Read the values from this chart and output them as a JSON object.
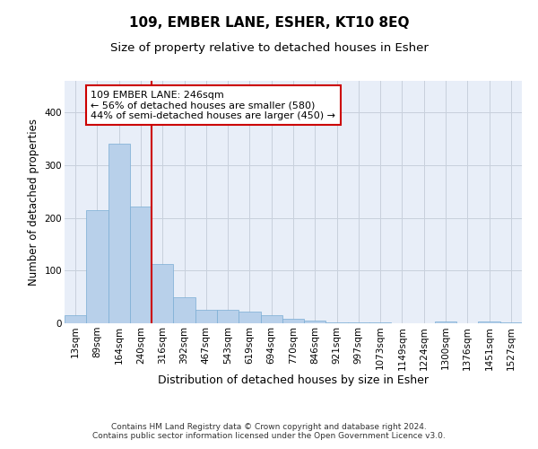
{
  "title": "109, EMBER LANE, ESHER, KT10 8EQ",
  "subtitle": "Size of property relative to detached houses in Esher",
  "xlabel": "Distribution of detached houses by size in Esher",
  "ylabel": "Number of detached properties",
  "categories": [
    "13sqm",
    "89sqm",
    "164sqm",
    "240sqm",
    "316sqm",
    "392sqm",
    "467sqm",
    "543sqm",
    "619sqm",
    "694sqm",
    "770sqm",
    "846sqm",
    "921sqm",
    "997sqm",
    "1073sqm",
    "1149sqm",
    "1224sqm",
    "1300sqm",
    "1376sqm",
    "1451sqm",
    "1527sqm"
  ],
  "values": [
    15,
    215,
    340,
    222,
    113,
    50,
    26,
    25,
    23,
    16,
    8,
    5,
    1,
    1,
    1,
    0,
    0,
    4,
    0,
    3,
    2
  ],
  "bar_color": "#b8d0ea",
  "bar_edge_color": "#7aadd4",
  "vline_color": "#cc0000",
  "vline_bin_index": 3,
  "annotation_text": "109 EMBER LANE: 246sqm\n← 56% of detached houses are smaller (580)\n44% of semi-detached houses are larger (450) →",
  "annotation_box_color": "#ffffff",
  "annotation_box_edge": "#cc0000",
  "ylim": [
    0,
    460
  ],
  "grid_color": "#c8d0dc",
  "bg_color": "#e8eef8",
  "footer": "Contains HM Land Registry data © Crown copyright and database right 2024.\nContains public sector information licensed under the Open Government Licence v3.0.",
  "title_fontsize": 11,
  "subtitle_fontsize": 9.5,
  "xlabel_fontsize": 9,
  "ylabel_fontsize": 8.5,
  "tick_fontsize": 7.5,
  "annot_fontsize": 8,
  "footer_fontsize": 6.5
}
